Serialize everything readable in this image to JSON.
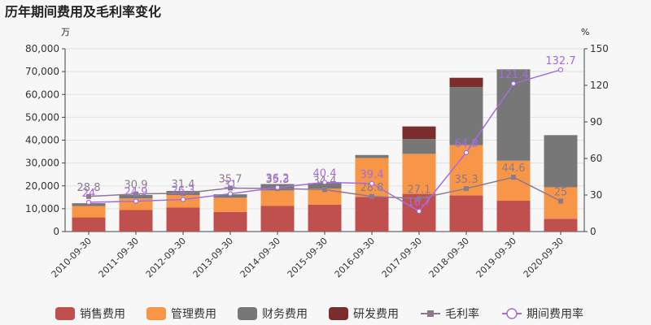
{
  "chart_data": {
    "type": "bar",
    "title": "历年期间费用及毛利率变化",
    "left_unit": "万",
    "right_unit": "%",
    "categories": [
      "2010-09-30",
      "2011-09-30",
      "2012-09-30",
      "2013-09-30",
      "2014-09-30",
      "2015-09-30",
      "2016-09-30",
      "2017-09-30",
      "2018-09-30",
      "2019-09-30",
      "2020-09-30"
    ],
    "left_axis": {
      "min": 0,
      "max": 80000,
      "ticks": [
        "0",
        "10,000",
        "20,000",
        "30,000",
        "40,000",
        "50,000",
        "60,000",
        "70,000",
        "80,000"
      ]
    },
    "right_axis": {
      "min": 0,
      "max": 150,
      "ticks": [
        "0",
        "30",
        "60",
        "90",
        "120",
        "150"
      ]
    },
    "grid": true,
    "legend_position": "bottom",
    "series": [
      {
        "name": "销售费用",
        "kind": "bar",
        "stack": "cost",
        "color": "#c0504d",
        "values": [
          6200,
          9500,
          10500,
          8600,
          11200,
          11800,
          15200,
          16500,
          15800,
          13500,
          5600
        ]
      },
      {
        "name": "管理费用",
        "kind": "bar",
        "stack": "cost",
        "color": "#f79646",
        "values": [
          5000,
          5000,
          5500,
          6200,
          6800,
          7000,
          17000,
          17500,
          22000,
          17500,
          13800
        ]
      },
      {
        "name": "财务费用",
        "kind": "bar",
        "stack": "cost",
        "color": "#777777",
        "values": [
          1200,
          1500,
          1800,
          1500,
          2800,
          2400,
          1300,
          6500,
          25500,
          40000,
          22800
        ]
      },
      {
        "name": "研发费用",
        "kind": "bar",
        "stack": "cost",
        "color": "#7b2c2c",
        "values": [
          0,
          0,
          0,
          0,
          0,
          0,
          0,
          5500,
          4000,
          0,
          0
        ]
      },
      {
        "name": "毛利率",
        "kind": "line",
        "axis": "right",
        "color": "#8c7a8c",
        "marker": "square",
        "values": [
          28.8,
          30.9,
          31.4,
          35.7,
          35.3,
          34.4,
          28.8,
          27.1,
          35.3,
          44.6,
          25
        ],
        "labels": [
          "28.8",
          "30.9",
          "31.4",
          "35.7",
          "35.3",
          "34.4",
          "28.8",
          "27.1",
          "35.3",
          "44.6",
          "25"
        ]
      },
      {
        "name": "期间费用率",
        "kind": "line",
        "axis": "right",
        "color": "#a66cde",
        "marker": "circle",
        "values": [
          24,
          24.9,
          26.3,
          31,
          36.2,
          40.4,
          39.4,
          16.7,
          64.8,
          121.4,
          132.7
        ],
        "labels": [
          "24",
          "24.9",
          "26.3",
          "31",
          "36.2",
          "40.4",
          "39.4",
          "16.7",
          "64.8",
          "121.4",
          "132.7"
        ]
      }
    ]
  }
}
